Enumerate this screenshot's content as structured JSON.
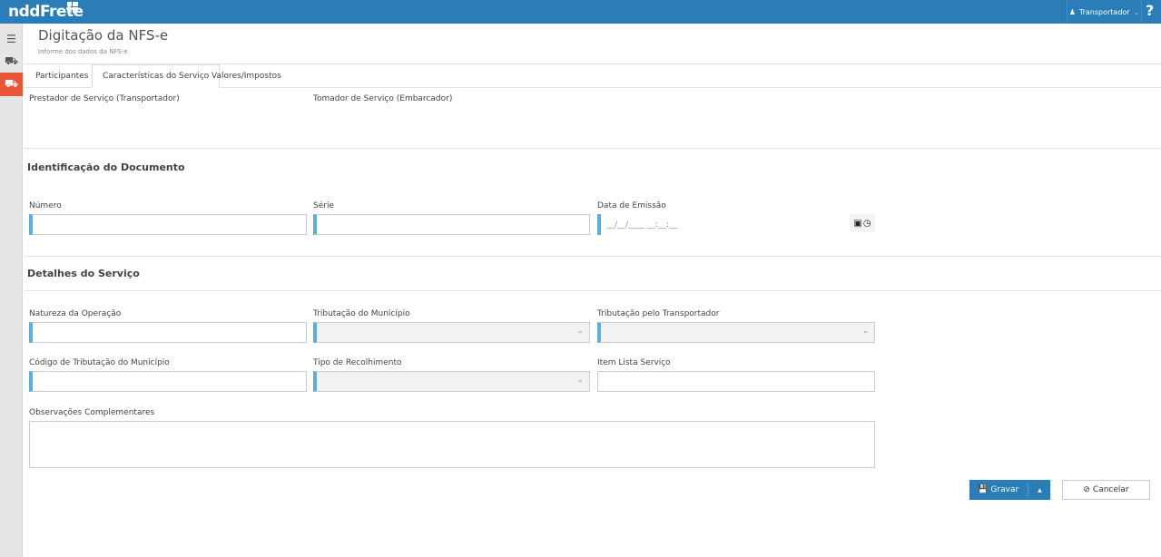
{
  "header": {
    "logo": "nddFrete",
    "user": "Transportador",
    "help": "?"
  },
  "page": {
    "title": "Digitação da NFS-e",
    "subtitle": "Informe dos dados da NFS-e"
  },
  "tabs": [
    {
      "label": "Participantes"
    },
    {
      "label": "Características do Serviço",
      "active": true
    },
    {
      "label": "Valores/Impostos"
    }
  ],
  "participants": {
    "prestador": "Prestador de Serviço (Transportador)",
    "tomador": "Tomador de Serviço (Embarcador)"
  },
  "identificacao": {
    "heading": "Identificação do Documento",
    "numero": "Número",
    "serie": "Série",
    "data_emissao": "Data de Emissão",
    "data_mask": "__/__/____ __:__:__"
  },
  "detalhes": {
    "heading": "Detalhes do Serviço",
    "natureza": "Natureza da Operação",
    "trib_municipio": "Tributação do Município",
    "trib_transportador": "Tributação pelo Transportador",
    "codigo_trib": "Código de Tributação do Município",
    "tipo_recolhimento": "Tipo de Recolhimento",
    "item_lista": "Item Lista Serviço",
    "observacoes": "Observações Complementares"
  },
  "actions": {
    "save": "Gravar",
    "cancel": "Cancelar"
  },
  "colors": {
    "header": "#2a7db6",
    "active_sidebar": "#e8563a",
    "field_accent": "#5aaee0"
  }
}
